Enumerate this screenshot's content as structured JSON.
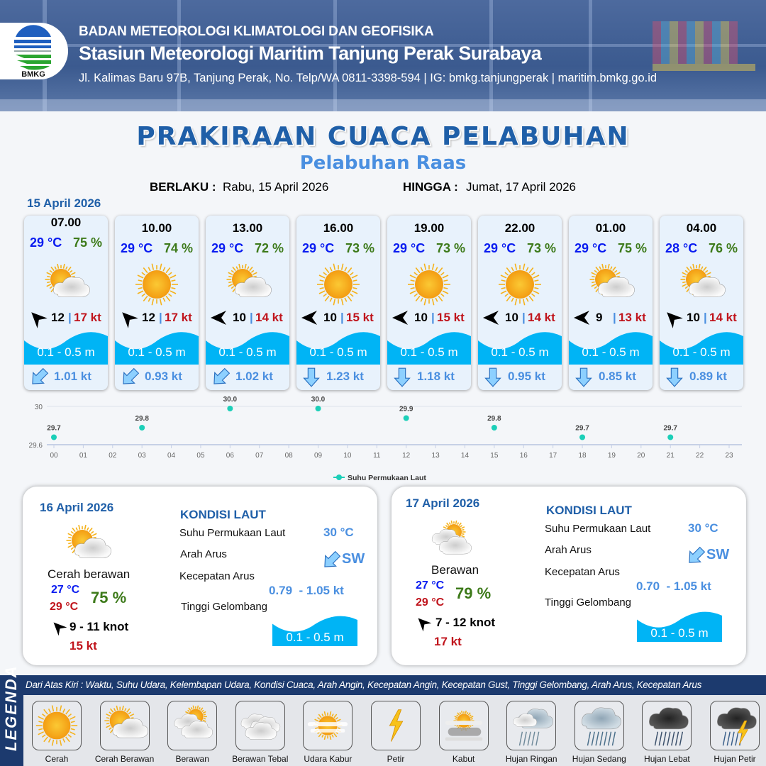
{
  "header": {
    "logo_text": "BMKG",
    "agency": "BADAN METEOROLOGI KLIMATOLOGI DAN GEOFISIKA",
    "station": "Stasiun Meteorologi Maritim Tanjung Perak Surabaya",
    "contact": "Jl. Kalimas Baru 97B, Tanjung Perak, No. Telp/WA 0811-3398-594 | IG: bmkg.tanjungperak | maritim.bmkg.go.id"
  },
  "title": "PRAKIRAAN CUACA PELABUHAN",
  "subtitle": "Pelabuhan Raas",
  "validity": {
    "from_label": "BERLAKU :",
    "from": "Rabu, 15 April 2026",
    "to_label": "HINGGA :",
    "to": "Jumat, 17 April 2026"
  },
  "day1": {
    "date": "15 April 2026",
    "cards": [
      {
        "time": "07.00",
        "temp": "29 °C",
        "hum": "75 %",
        "icon": "cerah-berawan",
        "wind_dir": "nw",
        "wind": "12",
        "gust": "17 kt",
        "wave": "0.1 - 0.5 m",
        "cur_dir": "sw",
        "cur": "1.01 kt"
      },
      {
        "time": "10.00",
        "temp": "29 °C",
        "hum": "74 %",
        "icon": "cerah",
        "wind_dir": "nw",
        "wind": "12",
        "gust": "17 kt",
        "wave": "0.1 - 0.5 m",
        "cur_dir": "sw",
        "cur": "0.93 kt"
      },
      {
        "time": "13.00",
        "temp": "29 °C",
        "hum": "72 %",
        "icon": "cerah-berawan",
        "wind_dir": "w",
        "wind": "10",
        "gust": "14 kt",
        "wave": "0.1 - 0.5 m",
        "cur_dir": "sw",
        "cur": "1.02 kt"
      },
      {
        "time": "16.00",
        "temp": "29 °C",
        "hum": "73 %",
        "icon": "cerah",
        "wind_dir": "w",
        "wind": "10",
        "gust": "15 kt",
        "wave": "0.1 - 0.5 m",
        "cur_dir": "s",
        "cur": "1.23 kt"
      },
      {
        "time": "19.00",
        "temp": "29 °C",
        "hum": "73 %",
        "icon": "cerah",
        "wind_dir": "w",
        "wind": "10",
        "gust": "15 kt",
        "wave": "0.1 - 0.5 m",
        "cur_dir": "s",
        "cur": "1.18 kt"
      },
      {
        "time": "22.00",
        "temp": "29 °C",
        "hum": "73 %",
        "icon": "cerah",
        "wind_dir": "w",
        "wind": "10",
        "gust": "14 kt",
        "wave": "0.1 - 0.5 m",
        "cur_dir": "s",
        "cur": "0.95 kt"
      },
      {
        "time": "01.00",
        "temp": "29 °C",
        "hum": "75 %",
        "icon": "cerah-berawan",
        "wind_dir": "w",
        "wind": "9",
        "gust": "13 kt",
        "wave": "0.1 - 0.5 m",
        "cur_dir": "s",
        "cur": "0.85 kt"
      },
      {
        "time": "04.00",
        "temp": "28 °C",
        "hum": "76 %",
        "icon": "cerah-berawan",
        "wind_dir": "nw",
        "wind": "10",
        "gust": "14 kt",
        "wave": "0.1 - 0.5 m",
        "cur_dir": "s",
        "cur": "0.89 kt"
      }
    ]
  },
  "chart_data": {
    "type": "scatter",
    "x_ticks": [
      "00",
      "01",
      "02",
      "03",
      "04",
      "05",
      "06",
      "07",
      "08",
      "09",
      "10",
      "11",
      "12",
      "13",
      "14",
      "15",
      "16",
      "17",
      "18",
      "19",
      "20",
      "21",
      "22",
      "23"
    ],
    "y_ticks": [
      "29.6",
      "30"
    ],
    "ylim": [
      29.6,
      30.0
    ],
    "series": [
      {
        "name": "Suhu Permukaan Laut",
        "color": "#1ccfb8",
        "x": [
          "00",
          "03",
          "06",
          "09",
          "12",
          "15",
          "18",
          "21"
        ],
        "values": [
          29.7,
          29.8,
          30.0,
          30.0,
          29.9,
          29.8,
          29.7,
          29.7
        ],
        "labels": [
          "29.7",
          "29.8",
          "30.0",
          "30.0",
          "29.9",
          "29.8",
          "29.7",
          "29.7"
        ]
      }
    ],
    "legend_position": "bottom"
  },
  "panels": [
    {
      "date": "16 April 2026",
      "icon": "cerah-berawan",
      "condition": "Cerah berawan",
      "tmin": "27 °C",
      "tmax": "29 °C",
      "hum": "75 %",
      "wind_dir": "nw",
      "wind": "9  - 11 knot",
      "gust": "15 kt",
      "sea_title": "KONDISI LAUT",
      "sst_label": "Suhu Permukaan Laut",
      "sst": "30 °C",
      "dir_label": "Arah Arus",
      "dir": "SW",
      "speed_label": "Kecepatan Arus",
      "speed": "0.79  - 1.05 kt",
      "wave_label": "Tinggi Gelombang",
      "wave": "0.1 - 0.5 m"
    },
    {
      "date": "17 April 2026",
      "icon": "berawan",
      "condition": "Berawan",
      "tmin": "27 °C",
      "tmax": "29 °C",
      "hum": "79 %",
      "wind_dir": "nw",
      "wind": "7  - 12 knot",
      "gust": "17 kt",
      "sea_title": "KONDISI LAUT",
      "sst_label": "Suhu Permukaan Laut",
      "sst": "30 °C",
      "dir_label": "Arah Arus",
      "dir": "SW",
      "speed_label": "Kecepatan Arus",
      "speed": "0.70  - 1.05 kt",
      "wave_label": "Tinggi Gelombang",
      "wave": "0.1 - 0.5 m"
    }
  ],
  "legend": {
    "title": "LEGENDA",
    "description": "Dari Atas Kiri : Waktu, Suhu Udara, Kelembapan Udara, Kondisi Cuaca, Arah Angin, Kecepatan Angin, Kecepatan Gust, Tinggi Gelombang, Arah Arus, Kecepatan Arus",
    "items": [
      {
        "label": "Cerah",
        "icon": "cerah"
      },
      {
        "label": "Cerah Berawan",
        "icon": "cerah-berawan"
      },
      {
        "label": "Berawan",
        "icon": "berawan"
      },
      {
        "label": "Berawan Tebal",
        "icon": "berawan-tebal"
      },
      {
        "label": "Udara Kabur",
        "icon": "udara-kabur"
      },
      {
        "label": "Petir",
        "icon": "petir"
      },
      {
        "label": "Kabut",
        "icon": "kabut"
      },
      {
        "label": "Hujan Ringan",
        "icon": "hujan-ringan"
      },
      {
        "label": "Hujan Sedang",
        "icon": "hujan-sedang"
      },
      {
        "label": "Hujan Lebat",
        "icon": "hujan-lebat"
      },
      {
        "label": "Hujan Petir",
        "icon": "hujan-petir"
      }
    ]
  },
  "colors": {
    "title": "#1f5fa8",
    "temp": "#0a1cf0",
    "humidity": "#3d7a1a",
    "gust": "#c0141c",
    "wave": "#00b4f5",
    "current": "#4a8fe0",
    "legend_bg": "#1c3a6e"
  }
}
